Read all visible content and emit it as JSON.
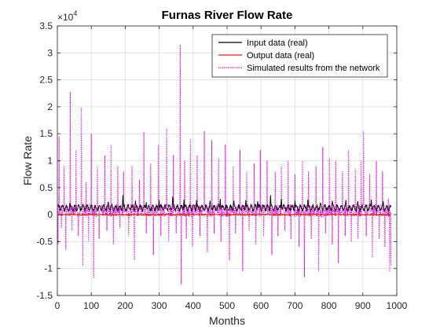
{
  "chart_data": {
    "type": "line",
    "title": "Furnas River Flow Rate",
    "xlabel": "Months",
    "ylabel": "Flow Rate",
    "xlim": [
      0,
      1000
    ],
    "ylim": [
      -15000,
      35000
    ],
    "x_ticks": [
      0,
      100,
      200,
      300,
      400,
      500,
      600,
      700,
      800,
      900,
      1000
    ],
    "x_tick_labels": [
      "0",
      "100",
      "200",
      "300",
      "400",
      "500",
      "600",
      "700",
      "800",
      "900",
      "1000"
    ],
    "y_ticks": [
      -15000,
      -10000,
      -5000,
      0,
      5000,
      10000,
      15000,
      20000,
      25000,
      30000,
      35000
    ],
    "y_tick_labels": [
      "-1.5",
      "-1",
      "-0.5",
      "0",
      "0.5",
      "1",
      "1.5",
      "2",
      "2.5",
      "3",
      "3.5"
    ],
    "y_exponent_label": "×10",
    "y_exponent_power": "4",
    "grid": true,
    "legend_position": "top-right",
    "n_points": 984,
    "series": [
      {
        "name": "Input data (real)",
        "color": "#000000",
        "style": "solid",
        "baseline": 1000,
        "peaks": [
          [
            0,
            1600
          ],
          [
            37,
            2200
          ],
          [
            75,
            1900
          ],
          [
            110,
            1600
          ],
          [
            150,
            2400
          ],
          [
            193,
            3600
          ],
          [
            230,
            2600
          ],
          [
            262,
            2300
          ],
          [
            300,
            2700
          ],
          [
            340,
            3400
          ],
          [
            373,
            2800
          ],
          [
            410,
            2700
          ],
          [
            450,
            2600
          ],
          [
            480,
            2900
          ],
          [
            520,
            2600
          ],
          [
            555,
            2700
          ],
          [
            590,
            2500
          ],
          [
            628,
            3600
          ],
          [
            660,
            2900
          ],
          [
            700,
            2600
          ],
          [
            738,
            2800
          ],
          [
            775,
            2200
          ],
          [
            810,
            2600
          ],
          [
            850,
            2700
          ],
          [
            885,
            2500
          ],
          [
            925,
            2800
          ],
          [
            960,
            2500
          ],
          [
            983,
            1400
          ]
        ]
      },
      {
        "name": "Output data (real)",
        "color": "#d62728",
        "style": "solid",
        "baseline": 0,
        "peaks": []
      },
      {
        "name": "Simulated results from the network",
        "color": "#e000e0",
        "style": "dotted",
        "baseline": 800,
        "peaks": [
          [
            2,
            -5500
          ],
          [
            5,
            14500
          ],
          [
            12,
            -2500
          ],
          [
            20,
            9000
          ],
          [
            25,
            -6500
          ],
          [
            38,
            22800
          ],
          [
            43,
            -3000
          ],
          [
            55,
            12000
          ],
          [
            62,
            -4000
          ],
          [
            71,
            19900
          ],
          [
            75,
            -9600
          ],
          [
            85,
            6000
          ],
          [
            92,
            -5000
          ],
          [
            100,
            15000
          ],
          [
            107,
            -11800
          ],
          [
            118,
            9000
          ],
          [
            123,
            -4500
          ],
          [
            140,
            11000
          ],
          [
            146,
            -3000
          ],
          [
            158,
            13000
          ],
          [
            165,
            -5500
          ],
          [
            178,
            9000
          ],
          [
            184,
            -2500
          ],
          [
            195,
            8000
          ],
          [
            210,
            -4000
          ],
          [
            220,
            9000
          ],
          [
            227,
            -8500
          ],
          [
            242,
            6500
          ],
          [
            255,
            15300
          ],
          [
            262,
            -3500
          ],
          [
            275,
            9500
          ],
          [
            283,
            -7500
          ],
          [
            298,
            13000
          ],
          [
            305,
            -4000
          ],
          [
            322,
            16000
          ],
          [
            328,
            -5000
          ],
          [
            342,
            11000
          ],
          [
            350,
            -3500
          ],
          [
            362,
            31500
          ],
          [
            365,
            -13000
          ],
          [
            375,
            10000
          ],
          [
            380,
            -4500
          ],
          [
            392,
            14000
          ],
          [
            398,
            -6000
          ],
          [
            412,
            11000
          ],
          [
            420,
            -4000
          ],
          [
            433,
            15500
          ],
          [
            442,
            -7000
          ],
          [
            455,
            13800
          ],
          [
            462,
            -3500
          ],
          [
            475,
            10500
          ],
          [
            482,
            -5000
          ],
          [
            495,
            13000
          ],
          [
            507,
            -8500
          ],
          [
            518,
            9000
          ],
          [
            525,
            -3500
          ],
          [
            538,
            12000
          ],
          [
            546,
            -10500
          ],
          [
            558,
            8000
          ],
          [
            565,
            -3000
          ],
          [
            580,
            9500
          ],
          [
            585,
            -5500
          ],
          [
            598,
            12000
          ],
          [
            608,
            -4000
          ],
          [
            618,
            10000
          ],
          [
            632,
            -7500
          ],
          [
            642,
            8000
          ],
          [
            650,
            -4000
          ],
          [
            660,
            9000
          ],
          [
            670,
            -3000
          ],
          [
            680,
            10000
          ],
          [
            688,
            -4500
          ],
          [
            700,
            7500
          ],
          [
            712,
            -6000
          ],
          [
            722,
            10000
          ],
          [
            728,
            -11600
          ],
          [
            740,
            8000
          ],
          [
            748,
            -4500
          ],
          [
            762,
            9000
          ],
          [
            770,
            -10500
          ],
          [
            782,
            12500
          ],
          [
            790,
            -3500
          ],
          [
            802,
            10500
          ],
          [
            810,
            -5500
          ],
          [
            820,
            10000
          ],
          [
            828,
            -9000
          ],
          [
            840,
            8000
          ],
          [
            848,
            -4000
          ],
          [
            858,
            12000
          ],
          [
            866,
            -5000
          ],
          [
            878,
            8500
          ],
          [
            886,
            -4500
          ],
          [
            895,
            10000
          ],
          [
            902,
            15500
          ],
          [
            910,
            -4000
          ],
          [
            920,
            7500
          ],
          [
            928,
            -8000
          ],
          [
            940,
            10000
          ],
          [
            948,
            -4500
          ],
          [
            958,
            8000
          ],
          [
            965,
            -6000
          ],
          [
            975,
            3000
          ],
          [
            979,
            -10600
          ],
          [
            984,
            -9500
          ]
        ]
      }
    ]
  }
}
